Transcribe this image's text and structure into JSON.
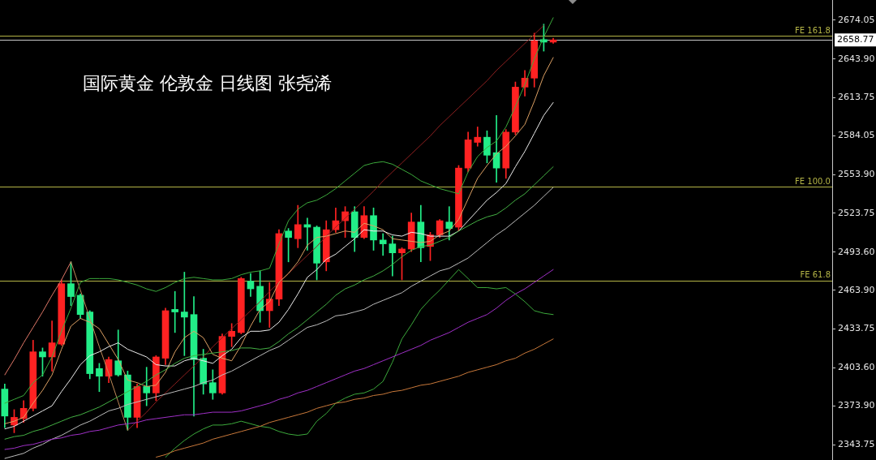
{
  "chart_data": {
    "type": "candlestick",
    "title": "国际黄金 伦敦金 日线图 张尧浠",
    "categories": [
      null,
      null,
      null,
      null,
      null,
      null,
      null,
      null,
      null,
      null,
      null,
      null,
      null,
      null,
      null,
      null,
      null,
      null,
      null,
      null,
      null,
      null,
      null,
      null,
      null,
      null,
      null,
      null,
      null,
      null,
      null,
      null,
      null,
      null,
      null,
      null,
      null,
      null,
      null,
      null,
      null,
      null,
      null,
      null,
      null,
      null,
      null,
      null,
      null,
      null,
      null,
      null,
      null,
      null,
      null,
      null,
      null,
      null,
      null
    ],
    "ohlc": [
      [
        2387,
        2391,
        2357,
        2366
      ],
      [
        2359,
        2371,
        2353,
        2365
      ],
      [
        2364,
        2378,
        2361,
        2372
      ],
      [
        2372,
        2425,
        2370,
        2416
      ],
      [
        2416,
        2419,
        2397,
        2412
      ],
      [
        2412,
        2440,
        2401,
        2423
      ],
      [
        2422,
        2472,
        2421,
        2469
      ],
      [
        2469,
        2486,
        2452,
        2459
      ],
      [
        2460,
        2461,
        2442,
        2445
      ],
      [
        2447,
        2448,
        2395,
        2399
      ],
      [
        2403,
        2407,
        2385,
        2397
      ],
      [
        2397,
        2412,
        2392,
        2410
      ],
      [
        2409,
        2433,
        2397,
        2398
      ],
      [
        2398,
        2401,
        2355,
        2365
      ],
      [
        2365,
        2391,
        2357,
        2389
      ],
      [
        2389,
        2404,
        2374,
        2384
      ],
      [
        2384,
        2413,
        2378,
        2412
      ],
      [
        2411,
        2450,
        2406,
        2448
      ],
      [
        2449,
        2463,
        2431,
        2447
      ],
      [
        2447,
        2478,
        2413,
        2443
      ],
      [
        2445,
        2459,
        2366,
        2410
      ],
      [
        2411,
        2418,
        2383,
        2391
      ],
      [
        2392,
        2402,
        2379,
        2384
      ],
      [
        2384,
        2430,
        2383,
        2428
      ],
      [
        2428,
        2438,
        2420,
        2432
      ],
      [
        2431,
        2474,
        2430,
        2473
      ],
      [
        2471,
        2477,
        2459,
        2465
      ],
      [
        2467,
        2479,
        2439,
        2448
      ],
      [
        2448,
        2470,
        2435,
        2457
      ],
      [
        2457,
        2511,
        2452,
        2508
      ],
      [
        2510,
        2512,
        2486,
        2505
      ],
      [
        2504,
        2530,
        2497,
        2515
      ],
      [
        2515,
        2520,
        2495,
        2513
      ],
      [
        2513,
        2514,
        2472,
        2485
      ],
      [
        2486,
        2518,
        2479,
        2511
      ],
      [
        2511,
        2528,
        2509,
        2518
      ],
      [
        2518,
        2529,
        2505,
        2525
      ],
      [
        2525,
        2529,
        2494,
        2505
      ],
      [
        2505,
        2529,
        2504,
        2522
      ],
      [
        2522,
        2528,
        2495,
        2503
      ],
      [
        2503,
        2508,
        2491,
        2500
      ],
      [
        2500,
        2506,
        2475,
        2493
      ],
      [
        2493,
        2497,
        2472,
        2496
      ],
      [
        2496,
        2524,
        2494,
        2517
      ],
      [
        2517,
        2530,
        2486,
        2497
      ],
      [
        2498,
        2509,
        2487,
        2507
      ],
      [
        2507,
        2519,
        2505,
        2518
      ],
      [
        2517,
        2529,
        2503,
        2512
      ],
      [
        2513,
        2561,
        2510,
        2559
      ],
      [
        2559,
        2587,
        2556,
        2581
      ],
      [
        2579,
        2591,
        2576,
        2583
      ],
      [
        2583,
        2588,
        2563,
        2569
      ],
      [
        2571,
        2600,
        2548,
        2559
      ],
      [
        2559,
        2589,
        2551,
        2587
      ],
      [
        2587,
        2626,
        2585,
        2622
      ],
      [
        2622,
        2635,
        2615,
        2629
      ],
      [
        2629,
        2664,
        2622,
        2658
      ],
      [
        2659,
        2671,
        2650,
        2657
      ],
      [
        2657,
        2660,
        2656,
        2658.77
      ]
    ],
    "colors": [
      "#22ee88",
      "#ff2222",
      "#ff2222",
      "#ff2222",
      "#22ee88",
      "#ff2222",
      "#ff2222",
      "#22ee88",
      "#22ee88",
      "#22ee88",
      "#22ee88",
      "#ff2222",
      "#22ee88",
      "#22ee88",
      "#ff2222",
      "#22ee88",
      "#ff2222",
      "#ff2222",
      "#22ee88",
      "#22ee88",
      "#22ee88",
      "#22ee88",
      "#22ee88",
      "#ff2222",
      "#ff2222",
      "#ff2222",
      "#22ee88",
      "#22ee88",
      "#ff2222",
      "#ff2222",
      "#22ee88",
      "#ff2222",
      "#22ee88",
      "#22ee88",
      "#ff2222",
      "#ff2222",
      "#ff2222",
      "#22ee88",
      "#ff2222",
      "#22ee88",
      "#22ee88",
      "#22ee88",
      "#ff2222",
      "#ff2222",
      "#22ee88",
      "#ff2222",
      "#ff2222",
      "#22ee88",
      "#ff2222",
      "#ff2222",
      "#ff2222",
      "#22ee88",
      "#22ee88",
      "#ff2222",
      "#ff2222",
      "#ff2222",
      "#ff2222",
      "#22ee88",
      "#ff2222"
    ],
    "series": [
      {
        "type": "line",
        "color": "#c8783a",
        "values": [
          null,
          null,
          null,
          null,
          null,
          null,
          null,
          null,
          null,
          null,
          null,
          null,
          null,
          null,
          null,
          null,
          2334,
          2336,
          2339,
          2341,
          2343,
          2345,
          2348,
          2350,
          2352,
          2354,
          2356,
          2358,
          2361,
          2363,
          2365,
          2367,
          2369,
          2372,
          2374,
          2376,
          2377,
          2379,
          2380,
          2382,
          2383,
          2385,
          2386,
          2388,
          2390,
          2391,
          2393,
          2395,
          2397,
          2400,
          2402,
          2404,
          2406,
          2409,
          2411,
          2415,
          2418,
          2422,
          2426
        ]
      },
      {
        "type": "line",
        "color": "#a030c8",
        "values": [
          2340,
          2341,
          2343,
          2344,
          2346,
          2348,
          2349,
          2351,
          2352,
          2354,
          2355,
          2357,
          2359,
          2360,
          2361,
          2363,
          2364,
          2365,
          2366,
          2367,
          2367,
          2368,
          2369,
          2369,
          2369,
          2370,
          2372,
          2374,
          2376,
          2379,
          2381,
          2384,
          2386,
          2389,
          2392,
          2395,
          2398,
          2401,
          2403,
          2406,
          2409,
          2412,
          2415,
          2418,
          2421,
          2425,
          2428,
          2431,
          2435,
          2439,
          2442,
          2445,
          2450,
          2456,
          2461,
          2465,
          2470,
          2475,
          2480
        ]
      },
      {
        "type": "line",
        "color": "#3caa3c",
        "values": [
          2376,
          2379,
          2382,
          2392,
          2398,
          2412,
          2432,
          2450,
          2470,
          2473,
          2473,
          2473,
          2472,
          2470,
          2468,
          2465,
          2463,
          2466,
          2470,
          2473,
          2474,
          2473,
          2472,
          2472,
          2473,
          2476,
          2478,
          2479,
          2481,
          2500,
          2518,
          2527,
          2532,
          2534,
          2538,
          2543,
          2549,
          2555,
          2561,
          2563,
          2564,
          2562,
          2558,
          2554,
          2549,
          2546,
          2543,
          2541,
          2539,
          2556,
          2568,
          2575,
          2580,
          2591,
          2607,
          2624,
          2644,
          2661,
          2676
        ]
      },
      {
        "type": "line",
        "color": "#3caa3c",
        "values": [
          null,
          null,
          null,
          null,
          null,
          null,
          null,
          null,
          null,
          null,
          null,
          null,
          null,
          null,
          null,
          null,
          null,
          2334,
          2341,
          2347,
          2352,
          2356,
          2359,
          2359,
          2360,
          2362,
          2360,
          2358,
          2357,
          2354,
          2352,
          2351,
          2352,
          2362,
          2368,
          2376,
          2380,
          2383,
          2384,
          2387,
          2393,
          2408,
          2426,
          2437,
          2449,
          2457,
          2464,
          2472,
          2480,
          2473,
          2466,
          2466,
          2465,
          2466,
          2461,
          2455,
          2448,
          2446,
          2445
        ]
      },
      {
        "type": "line",
        "color": "#bdbdbd",
        "values": [
          2333,
          2335,
          2337,
          2341,
          2344,
          2348,
          2351,
          2355,
          2359,
          2362,
          2366,
          2370,
          2372,
          2375,
          2377,
          2379,
          2381,
          2383,
          2385,
          2387,
          2389,
          2392,
          2394,
          2398,
          2401,
          2405,
          2409,
          2413,
          2417,
          2420,
          2425,
          2430,
          2435,
          2437,
          2440,
          2444,
          2445,
          2447,
          2449,
          2453,
          2456,
          2459,
          2462,
          2467,
          2471,
          2475,
          2479,
          2481,
          2485,
          2489,
          2495,
          2501,
          2507,
          2512,
          2518,
          2524,
          2530,
          2537,
          2544
        ]
      },
      {
        "type": "line",
        "color": "#44b044",
        "values": [
          2348,
          2350,
          2351,
          2354,
          2356,
          2359,
          2362,
          2365,
          2367,
          2370,
          2373,
          2377,
          2381,
          2385,
          2389,
          2393,
          2398,
          2402,
          2407,
          2411,
          2413,
          2414,
          2415,
          2416,
          2417,
          2419,
          2419,
          2418,
          2419,
          2424,
          2430,
          2435,
          2441,
          2447,
          2453,
          2460,
          2465,
          2468,
          2472,
          2475,
          2479,
          2484,
          2490,
          2495,
          2498,
          2499,
          2502,
          2505,
          2510,
          2514,
          2518,
          2521,
          2523,
          2528,
          2534,
          2539,
          2546,
          2553,
          2560
        ]
      },
      {
        "type": "line",
        "color": "#ececec",
        "values": [
          2356,
          2358,
          2362,
          2366,
          2370,
          2374,
          2385,
          2395,
          2406,
          2413,
          2416,
          2420,
          2423,
          2418,
          2415,
          2412,
          2406,
          2405,
          2405,
          2409,
          2411,
          2409,
          2407,
          2413,
          2418,
          2427,
          2432,
          2432,
          2433,
          2439,
          2449,
          2461,
          2474,
          2480,
          2488,
          2492,
          2498,
          2504,
          2511,
          2510,
          2510,
          2507,
          2506,
          2509,
          2508,
          2506,
          2506,
          2506,
          2510,
          2518,
          2526,
          2534,
          2540,
          2547,
          2560,
          2572,
          2586,
          2600,
          2610
        ]
      },
      {
        "type": "line",
        "color": "#dca064",
        "values": [
          2360,
          2362,
          2365,
          2376,
          2386,
          2398,
          2418,
          2436,
          2442,
          2439,
          2434,
          2422,
          2410,
          2394,
          2392,
          2389,
          2390,
          2400,
          2416,
          2427,
          2432,
          2427,
          2414,
          2411,
          2409,
          2421,
          2436,
          2449,
          2455,
          2470,
          2477,
          2486,
          2499,
          2505,
          2506,
          2508,
          2510,
          2509,
          2516,
          2514,
          2511,
          2504,
          2503,
          2502,
          2501,
          2502,
          2507,
          2510,
          2519,
          2535,
          2551,
          2561,
          2570,
          2576,
          2584,
          2593,
          2611,
          2631,
          2645
        ]
      },
      {
        "type": "line",
        "color": "#e07868",
        "values": [
          2398,
          2410,
          2423,
          2435,
          2447,
          2460,
          2472,
          2486,
          null,
          null,
          null,
          null,
          null,
          null,
          null,
          null,
          null,
          null,
          null,
          null,
          null,
          null,
          null,
          null,
          null,
          null,
          null,
          null,
          null,
          null,
          null,
          null,
          null,
          null,
          null,
          null,
          null,
          null,
          null,
          null,
          null,
          null,
          null,
          null,
          null,
          null,
          null,
          null,
          null,
          null,
          null,
          null,
          null,
          null,
          null,
          null,
          null,
          null,
          null
        ]
      },
      {
        "type": "line",
        "color": "#c08a58",
        "values": [
          null,
          null,
          null,
          null,
          null,
          null,
          null,
          2486,
          2464,
          2442,
          2420,
          2399,
          2377,
          2355,
          null,
          null,
          null,
          null,
          null,
          null,
          null,
          null,
          null,
          null,
          null,
          null,
          null,
          null,
          null,
          null,
          null,
          null,
          null,
          null,
          null,
          null,
          null,
          null,
          null,
          null,
          null,
          null,
          null,
          null,
          null,
          null,
          null,
          null,
          null,
          null,
          null,
          null,
          null,
          null,
          null,
          null,
          null,
          null,
          null
        ]
      },
      {
        "type": "line",
        "color": "#8e2020",
        "values": [
          null,
          null,
          null,
          null,
          null,
          null,
          null,
          null,
          null,
          null,
          null,
          null,
          null,
          2355,
          2362,
          2369,
          2377,
          2384,
          2391,
          2398,
          2405,
          2412,
          2420,
          2427,
          2434,
          2441,
          2448,
          2455,
          2463,
          2470,
          2477,
          2484,
          2491,
          2498,
          2506,
          2513,
          2520,
          2527,
          2534,
          2541,
          2549,
          2556,
          2563,
          2570,
          2577,
          2584,
          2592,
          2599,
          2606,
          2613,
          2620,
          2627,
          2635,
          2642,
          2649,
          2656,
          2663,
          2670,
          null
        ]
      }
    ],
    "ylim": [
      2331.8,
      2689.8
    ],
    "yticks": [
      2343.75,
      {
        "value": 2373.9,
        "label": "2373.90"
      },
      {
        "value": 2403.6,
        "label": "2403.60"
      },
      2433.75,
      {
        "value": 2463.9,
        "label": "2463.90"
      },
      {
        "value": 2493.6,
        "label": "2493.60"
      },
      2523.75,
      {
        "value": 2553.9,
        "label": "2553.90"
      },
      2584.05,
      2613.75,
      {
        "value": 2643.9,
        "label": "2643.90"
      },
      2674.05
    ],
    "ref_lines": [
      {
        "axis": "y",
        "value": 2662,
        "label": "FE 161.8",
        "color": "#b4b446"
      },
      {
        "axis": "y",
        "value": 2658.77,
        "label": "2658.77",
        "color": "#c8c8c8"
      },
      {
        "axis": "y",
        "value": 2544.6,
        "label": "FE 100.0",
        "color": "#b4b446"
      },
      {
        "axis": "y",
        "value": 2471.5,
        "label": "FE 61.8",
        "color": "#b4b446"
      }
    ],
    "tick_labels": "y"
  }
}
